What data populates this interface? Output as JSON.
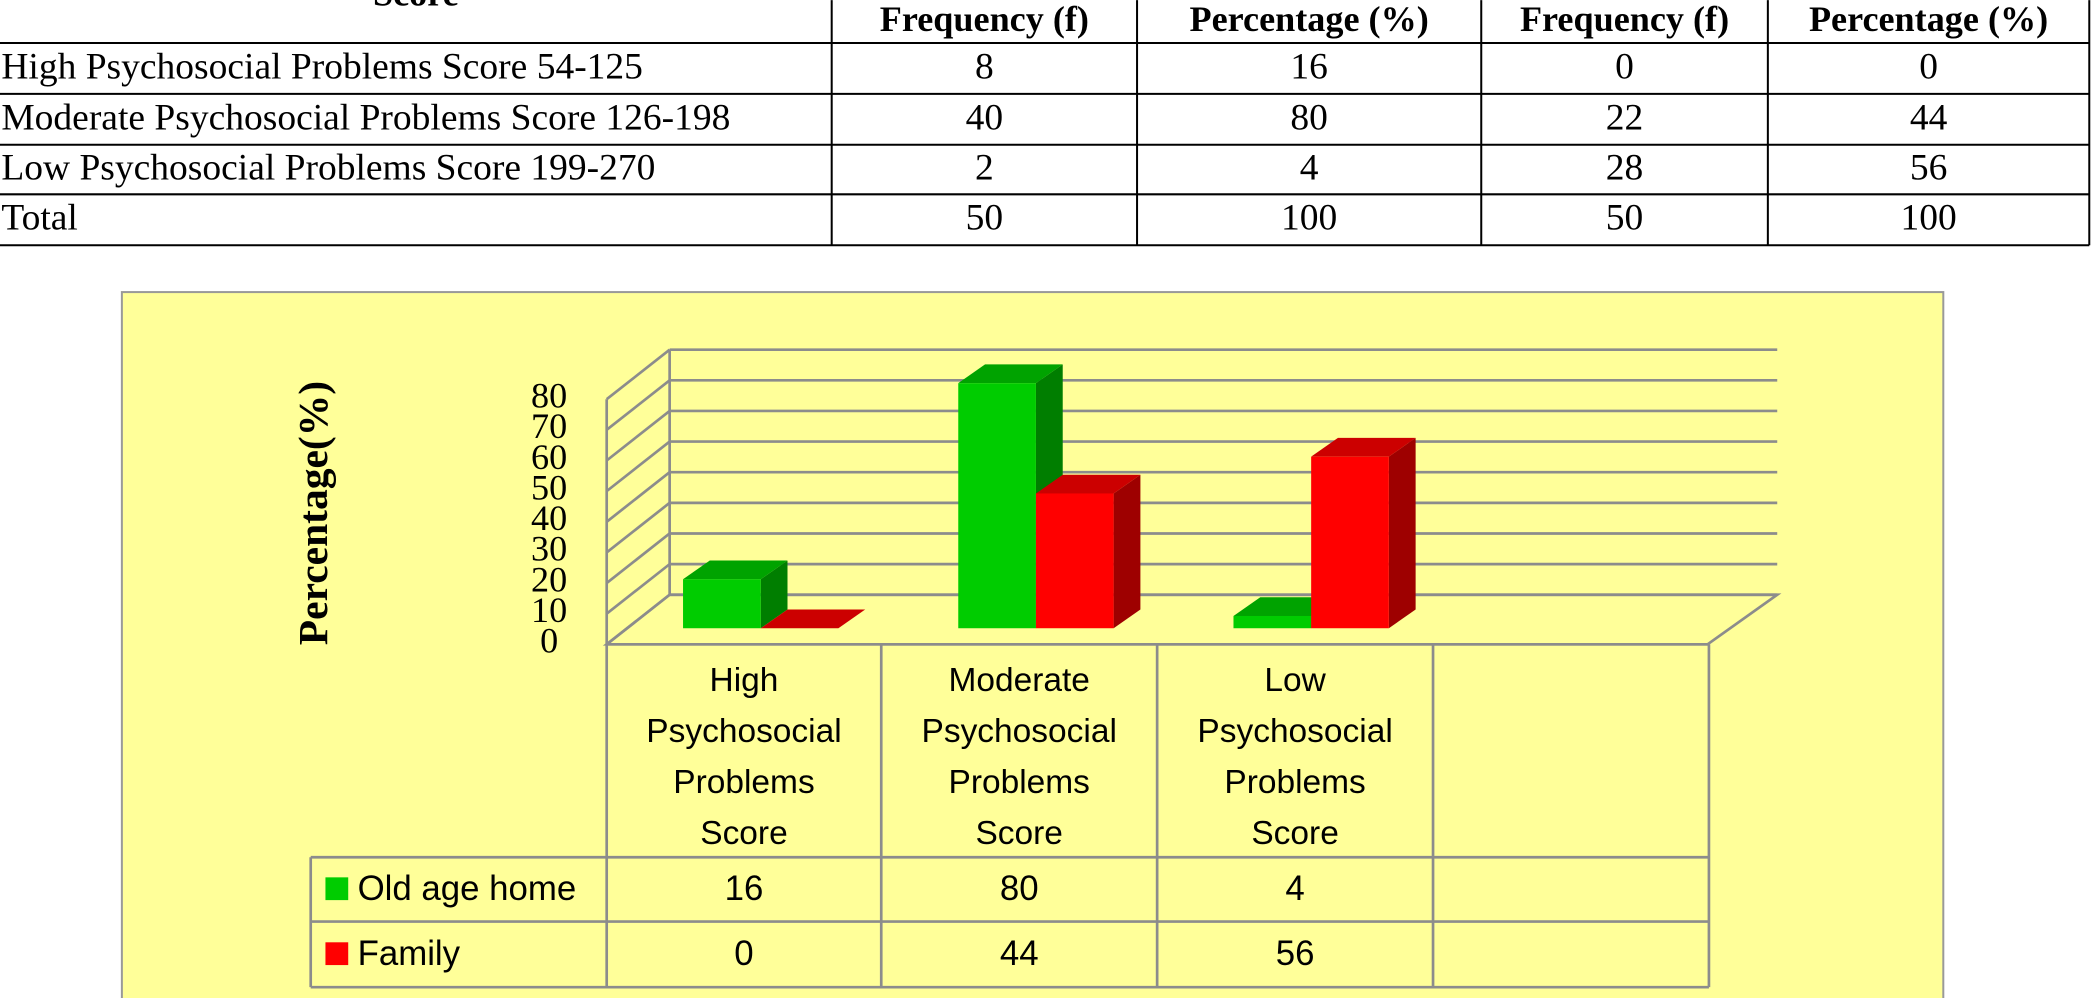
{
  "table": {
    "header": [
      "Score",
      "Frequency (f)",
      "Percentage (%)",
      "Frequency (f)",
      "Percentage (%)"
    ],
    "rows": [
      [
        "High Psychosocial Problems Score 54-125",
        8,
        16,
        0,
        0
      ],
      [
        "Moderate Psychosocial Problems Score 126-198",
        40,
        80,
        22,
        44
      ],
      [
        "Low Psychosocial Problems Score 199-270",
        2,
        4,
        28,
        56
      ],
      [
        "Total",
        50,
        100,
        50,
        100
      ]
    ]
  },
  "chart_data": {
    "type": "bar",
    "y_label": "Percentage(%)",
    "categories": [
      "High Psychosocial Problems Score",
      "Moderate Psychosocial Problems Score",
      "Low Psychosocial Problems Score"
    ],
    "series": [
      {
        "name": "Old age home",
        "color": "#00cc00",
        "values": [
          16,
          80,
          4
        ]
      },
      {
        "name": "Family",
        "color": "#ff0000",
        "values": [
          0,
          44,
          56
        ]
      }
    ],
    "ylim": [
      0,
      80
    ],
    "yticks": [
      0,
      10,
      20,
      30,
      40,
      50,
      60,
      70,
      80
    ],
    "grid": true
  }
}
